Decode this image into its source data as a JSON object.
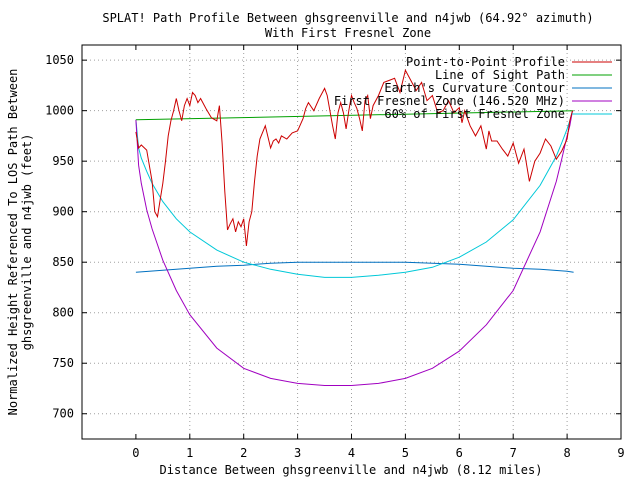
{
  "chart_data": {
    "type": "line",
    "title": "SPLAT! Path Profile Between ghsgreenville and n4jwb (64.92° azimuth)",
    "subtitle": "With First Fresnel Zone",
    "xlabel": "Distance Between ghsgreenville and n4jwb (8.12 miles)",
    "ylabel_line1": "Normalized Height Referenced To LOS Path Between",
    "ylabel_line2": "ghsgreenville and n4jwb (feet)",
    "xlim": [
      -1,
      9
    ],
    "ylim": [
      675,
      1065
    ],
    "xticks": [
      "0",
      "1",
      "2",
      "3",
      "4",
      "5",
      "6",
      "7",
      "8",
      "9"
    ],
    "yticks": [
      "700",
      "750",
      "800",
      "850",
      "900",
      "950",
      "1000",
      "1050"
    ],
    "grid": true,
    "legend_position": "top-right",
    "colors": {
      "profile": "#cc0000",
      "los": "#00a000",
      "curvature": "#0070c0",
      "fresnel": "#a000c0",
      "fresnel60": "#00c8d8"
    },
    "series": [
      {
        "name": "Point-to-Point Profile",
        "key": "profile",
        "x": [
          0,
          0.05,
          0.1,
          0.2,
          0.3,
          0.35,
          0.4,
          0.45,
          0.5,
          0.55,
          0.6,
          0.65,
          0.7,
          0.75,
          0.8,
          0.85,
          0.9,
          0.95,
          1.0,
          1.05,
          1.1,
          1.15,
          1.2,
          1.3,
          1.4,
          1.5,
          1.55,
          1.6,
          1.65,
          1.7,
          1.75,
          1.8,
          1.85,
          1.9,
          1.95,
          2.0,
          2.05,
          2.1,
          2.15,
          2.2,
          2.25,
          2.3,
          2.4,
          2.5,
          2.55,
          2.6,
          2.65,
          2.7,
          2.8,
          2.9,
          3.0,
          3.1,
          3.15,
          3.2,
          3.3,
          3.4,
          3.5,
          3.55,
          3.6,
          3.65,
          3.7,
          3.75,
          3.8,
          3.85,
          3.9,
          3.95,
          4.0,
          4.05,
          4.1,
          4.15,
          4.2,
          4.25,
          4.3,
          4.35,
          4.4,
          4.5,
          4.6,
          4.7,
          4.8,
          4.9,
          5.0,
          5.1,
          5.2,
          5.3,
          5.4,
          5.5,
          5.6,
          5.7,
          5.8,
          5.9,
          6.0,
          6.05,
          6.1,
          6.2,
          6.3,
          6.4,
          6.5,
          6.55,
          6.6,
          6.7,
          6.8,
          6.9,
          7.0,
          7.1,
          7.2,
          7.3,
          7.35,
          7.4,
          7.5,
          7.6,
          7.7,
          7.8,
          7.9,
          8.0,
          8.05,
          8.1
        ],
        "y": [
          979,
          963,
          966,
          961,
          930,
          900,
          895,
          912,
          928,
          950,
          975,
          990,
          1000,
          1012,
          1000,
          990,
          1005,
          1012,
          1005,
          1018,
          1015,
          1008,
          1012,
          1002,
          993,
          990,
          1005,
          968,
          920,
          882,
          888,
          893,
          880,
          890,
          885,
          893,
          866,
          890,
          900,
          930,
          955,
          972,
          985,
          963,
          970,
          972,
          968,
          975,
          972,
          978,
          980,
          992,
          1002,
          1008,
          1000,
          1012,
          1022,
          1015,
          1000,
          985,
          972,
          998,
          1008,
          998,
          982,
          1000,
          1015,
          1008,
          1002,
          992,
          980,
          1010,
          1015,
          992,
          1005,
          1015,
          1028,
          1030,
          1032,
          1018,
          1040,
          1030,
          1020,
          1028,
          1010,
          1015,
          998,
          1000,
          1010,
          998,
          1003,
          988,
          1000,
          985,
          975,
          985,
          962,
          980,
          970,
          970,
          962,
          955,
          968,
          948,
          962,
          930,
          940,
          950,
          958,
          972,
          965,
          952,
          960,
          972,
          990,
          1000
        ]
      },
      {
        "name": "Line of Sight Path",
        "key": "los",
        "x": [
          0,
          8.12
        ],
        "y": [
          991,
          1000
        ]
      },
      {
        "name": "Earth's Curvature Contour",
        "key": "curvature",
        "x": [
          0,
          0.5,
          1.0,
          1.5,
          2.0,
          2.5,
          3.0,
          3.5,
          4.0,
          4.5,
          5.0,
          5.5,
          6.0,
          6.5,
          7.0,
          7.5,
          8.0,
          8.12
        ],
        "y": [
          840,
          842,
          844,
          846,
          847,
          849,
          850,
          850,
          850,
          850,
          850,
          849,
          848,
          846,
          844,
          843,
          841,
          840
        ]
      },
      {
        "name": "First Fresnel Zone (146.520 MHz)",
        "key": "fresnel",
        "x": [
          0,
          0.05,
          0.1,
          0.2,
          0.3,
          0.5,
          0.75,
          1.0,
          1.5,
          2.0,
          2.5,
          3.0,
          3.5,
          4.0,
          4.5,
          5.0,
          5.5,
          6.0,
          6.5,
          7.0,
          7.5,
          7.8,
          7.9,
          8.0,
          8.05,
          8.1
        ],
        "y": [
          991,
          946,
          928,
          902,
          883,
          852,
          822,
          798,
          765,
          745,
          735,
          730,
          728,
          728,
          730,
          735,
          745,
          762,
          788,
          822,
          880,
          930,
          952,
          975,
          985,
          1000
        ]
      },
      {
        "name": "60% of First Fresnel Zone",
        "key": "fresnel60",
        "x": [
          0,
          0.05,
          0.1,
          0.2,
          0.3,
          0.5,
          0.75,
          1.0,
          1.5,
          2.0,
          2.5,
          3.0,
          3.5,
          4.0,
          4.5,
          5.0,
          5.5,
          6.0,
          6.5,
          7.0,
          7.5,
          7.8,
          7.9,
          8.0,
          8.05,
          8.1
        ],
        "y": [
          991,
          963,
          953,
          940,
          928,
          910,
          893,
          880,
          862,
          850,
          843,
          838,
          835,
          835,
          837,
          840,
          845,
          855,
          870,
          892,
          926,
          955,
          968,
          982,
          990,
          1000
        ]
      }
    ]
  }
}
